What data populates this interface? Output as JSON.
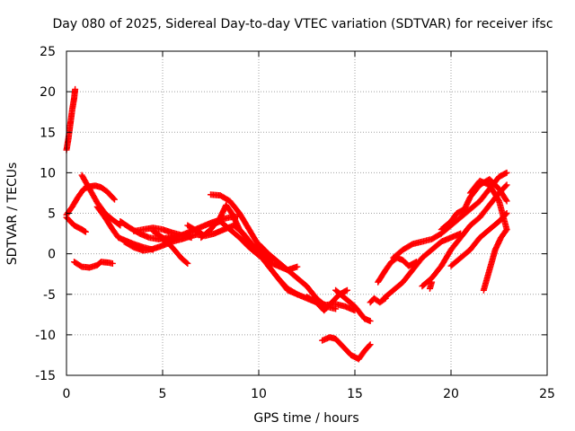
{
  "chart_data": {
    "type": "scatter",
    "title": "Day 080 of 2025, Sidereal Day-to-day VTEC variation (SDTVAR) for receiver ifsc",
    "xlabel": "GPS time / hours",
    "ylabel": "SDTVAR / TECUs",
    "xlim": [
      0,
      25
    ],
    "ylim": [
      -15,
      25
    ],
    "xticks": [
      0,
      5,
      10,
      15,
      20,
      25
    ],
    "yticks": [
      -15,
      -10,
      -5,
      0,
      5,
      10,
      15,
      20,
      25
    ],
    "grid": true,
    "marker": "plus",
    "color": "#ff0000",
    "series": [
      {
        "name": "s1",
        "points": [
          [
            0.0,
            12.8
          ],
          [
            0.1,
            14.2
          ],
          [
            0.2,
            16.0
          ],
          [
            0.3,
            17.8
          ],
          [
            0.4,
            19.2
          ],
          [
            0.45,
            20.3
          ]
        ]
      },
      {
        "name": "s2",
        "points": [
          [
            0.0,
            4.8
          ],
          [
            0.3,
            5.8
          ],
          [
            0.6,
            7.0
          ],
          [
            0.9,
            8.0
          ],
          [
            1.2,
            8.3
          ],
          [
            1.5,
            8.4
          ],
          [
            1.8,
            8.2
          ],
          [
            2.1,
            7.7
          ],
          [
            2.5,
            6.7
          ]
        ]
      },
      {
        "name": "s3",
        "points": [
          [
            0.0,
            4.5
          ],
          [
            0.4,
            3.5
          ],
          [
            0.8,
            3.0
          ],
          [
            1.0,
            2.7
          ]
        ]
      },
      {
        "name": "s4",
        "points": [
          [
            0.4,
            -1.0
          ],
          [
            0.8,
            -1.6
          ],
          [
            1.2,
            -1.7
          ],
          [
            1.6,
            -1.4
          ],
          [
            1.8,
            -1.0
          ],
          [
            2.2,
            -1.1
          ],
          [
            2.4,
            -1.2
          ]
        ]
      },
      {
        "name": "s5",
        "points": [
          [
            0.8,
            9.7
          ],
          [
            1.2,
            8.0
          ],
          [
            1.6,
            6.3
          ],
          [
            2.0,
            5.0
          ],
          [
            2.4,
            4.2
          ],
          [
            2.8,
            3.5
          ]
        ]
      },
      {
        "name": "s6",
        "points": [
          [
            1.6,
            5.8
          ],
          [
            2.0,
            4.5
          ],
          [
            2.4,
            3.0
          ],
          [
            2.7,
            2.0
          ],
          [
            3.0,
            1.7
          ],
          [
            3.5,
            1.2
          ],
          [
            4.0,
            0.8
          ],
          [
            4.5,
            0.5
          ]
        ]
      },
      {
        "name": "s7",
        "points": [
          [
            2.8,
            4.0
          ],
          [
            3.3,
            3.2
          ],
          [
            3.8,
            2.5
          ],
          [
            4.3,
            2.0
          ],
          [
            4.8,
            1.8
          ],
          [
            5.3,
            2.0
          ],
          [
            5.8,
            1.8
          ]
        ]
      },
      {
        "name": "s8",
        "points": [
          [
            3.5,
            2.8
          ],
          [
            4.0,
            3.0
          ],
          [
            4.5,
            3.2
          ],
          [
            5.0,
            3.0
          ],
          [
            5.5,
            2.6
          ],
          [
            6.0,
            2.3
          ],
          [
            6.5,
            2.0
          ]
        ]
      },
      {
        "name": "s9",
        "points": [
          [
            3.0,
            1.5
          ],
          [
            3.5,
            0.8
          ],
          [
            4.0,
            0.4
          ],
          [
            4.5,
            0.6
          ],
          [
            5.0,
            1.0
          ],
          [
            5.5,
            1.5
          ],
          [
            6.0,
            1.8
          ],
          [
            6.5,
            2.2
          ],
          [
            7.0,
            2.5
          ]
        ]
      },
      {
        "name": "s10",
        "points": [
          [
            4.5,
            2.8
          ],
          [
            5.0,
            2.0
          ],
          [
            5.5,
            0.8
          ],
          [
            6.0,
            -0.6
          ],
          [
            6.3,
            -1.2
          ]
        ]
      },
      {
        "name": "s11",
        "points": [
          [
            5.0,
            1.6
          ],
          [
            5.5,
            2.0
          ],
          [
            6.0,
            2.3
          ],
          [
            6.5,
            2.8
          ],
          [
            7.0,
            3.3
          ],
          [
            7.5,
            3.8
          ],
          [
            8.0,
            4.2
          ],
          [
            8.5,
            4.5
          ],
          [
            8.9,
            4.6
          ]
        ]
      },
      {
        "name": "s12",
        "points": [
          [
            6.3,
            3.5
          ],
          [
            6.8,
            2.8
          ],
          [
            7.2,
            2.2
          ],
          [
            7.7,
            2.5
          ],
          [
            8.2,
            3.0
          ],
          [
            8.7,
            3.5
          ],
          [
            9.2,
            2.5
          ],
          [
            9.7,
            1.0
          ],
          [
            10.2,
            0.0
          ],
          [
            10.7,
            -0.8
          ]
        ]
      },
      {
        "name": "s13",
        "points": [
          [
            7.5,
            7.3
          ],
          [
            8.0,
            7.2
          ],
          [
            8.5,
            6.5
          ],
          [
            9.0,
            5.0
          ],
          [
            9.5,
            3.0
          ],
          [
            10.0,
            1.0
          ],
          [
            10.5,
            -0.5
          ]
        ]
      },
      {
        "name": "s14",
        "points": [
          [
            7.0,
            2.0
          ],
          [
            7.5,
            3.0
          ],
          [
            8.0,
            4.5
          ],
          [
            8.3,
            6.0
          ],
          [
            8.6,
            5.0
          ],
          [
            9.0,
            3.0
          ],
          [
            9.5,
            1.5
          ],
          [
            10.0,
            0.0
          ],
          [
            10.5,
            -1.5
          ],
          [
            11.0,
            -3.0
          ],
          [
            11.5,
            -4.5
          ],
          [
            12.0,
            -5.0
          ]
        ]
      },
      {
        "name": "s15",
        "points": [
          [
            7.5,
            3.5
          ],
          [
            8.0,
            4.0
          ],
          [
            8.5,
            3.0
          ],
          [
            9.0,
            2.0
          ],
          [
            9.5,
            0.8
          ],
          [
            10.0,
            -0.2
          ],
          [
            10.5,
            -1.0
          ],
          [
            11.0,
            -1.5
          ],
          [
            11.5,
            -2.0
          ],
          [
            12.0,
            -1.6
          ]
        ]
      },
      {
        "name": "s16",
        "points": [
          [
            10.0,
            1.2
          ],
          [
            10.5,
            0.0
          ],
          [
            11.0,
            -1.0
          ],
          [
            11.5,
            -2.0
          ],
          [
            12.0,
            -3.0
          ],
          [
            12.5,
            -4.0
          ],
          [
            13.0,
            -5.5
          ],
          [
            13.5,
            -6.5
          ],
          [
            14.0,
            -6.8
          ]
        ]
      },
      {
        "name": "s17",
        "points": [
          [
            10.5,
            -1.5
          ],
          [
            11.0,
            -3.0
          ],
          [
            11.5,
            -4.3
          ],
          [
            12.0,
            -5.0
          ],
          [
            12.5,
            -5.5
          ],
          [
            13.0,
            -6.0
          ],
          [
            13.5,
            -6.3
          ],
          [
            14.0,
            -6.2
          ],
          [
            14.5,
            -6.5
          ],
          [
            15.0,
            -7.0
          ]
        ]
      },
      {
        "name": "s18",
        "points": [
          [
            12.5,
            -5.3
          ],
          [
            13.0,
            -6.0
          ],
          [
            13.4,
            -7.0
          ],
          [
            13.8,
            -6.0
          ],
          [
            14.2,
            -5.0
          ],
          [
            14.6,
            -4.5
          ]
        ]
      },
      {
        "name": "s19",
        "points": [
          [
            14.0,
            -4.5
          ],
          [
            14.5,
            -5.5
          ],
          [
            15.0,
            -6.5
          ],
          [
            15.5,
            -8.0
          ],
          [
            15.8,
            -8.3
          ]
        ]
      },
      {
        "name": "s20",
        "points": [
          [
            13.3,
            -10.7
          ],
          [
            13.7,
            -10.3
          ],
          [
            14.0,
            -10.5
          ],
          [
            14.4,
            -11.5
          ],
          [
            14.8,
            -12.5
          ],
          [
            15.2,
            -13.0
          ],
          [
            15.5,
            -12.0
          ],
          [
            15.8,
            -11.2
          ]
        ]
      },
      {
        "name": "s21",
        "points": [
          [
            15.8,
            -6.0
          ],
          [
            16.0,
            -5.5
          ],
          [
            16.3,
            -6.0
          ],
          [
            16.6,
            -5.5
          ]
        ]
      },
      {
        "name": "s22",
        "points": [
          [
            16.2,
            -3.5
          ],
          [
            16.6,
            -2.0
          ],
          [
            16.9,
            -1.0
          ],
          [
            17.2,
            -0.5
          ],
          [
            17.5,
            -0.8
          ],
          [
            17.8,
            -1.5
          ],
          [
            18.2,
            -1.0
          ]
        ]
      },
      {
        "name": "s23",
        "points": [
          [
            16.5,
            -5.5
          ],
          [
            17.0,
            -4.5
          ],
          [
            17.5,
            -3.5
          ],
          [
            18.0,
            -2.0
          ],
          [
            18.5,
            -0.5
          ],
          [
            19.0,
            0.5
          ],
          [
            19.5,
            1.5
          ],
          [
            20.0,
            2.0
          ],
          [
            20.5,
            2.5
          ]
        ]
      },
      {
        "name": "s24",
        "points": [
          [
            17.0,
            -0.5
          ],
          [
            17.5,
            0.5
          ],
          [
            18.0,
            1.2
          ],
          [
            18.5,
            1.5
          ],
          [
            19.0,
            1.8
          ],
          [
            19.5,
            2.5
          ],
          [
            20.0,
            3.5
          ],
          [
            20.5,
            4.5
          ],
          [
            21.0,
            5.5
          ],
          [
            21.5,
            6.5
          ],
          [
            22.0,
            8.0
          ],
          [
            22.5,
            9.5
          ],
          [
            22.9,
            10.0
          ]
        ]
      },
      {
        "name": "s25",
        "points": [
          [
            18.5,
            -4.0
          ],
          [
            19.0,
            -3.0
          ],
          [
            19.5,
            -1.5
          ],
          [
            20.0,
            0.5
          ],
          [
            20.5,
            2.0
          ],
          [
            21.0,
            3.5
          ],
          [
            21.5,
            4.5
          ],
          [
            22.0,
            6.0
          ],
          [
            22.5,
            7.5
          ],
          [
            22.9,
            8.5
          ]
        ]
      },
      {
        "name": "s26",
        "points": [
          [
            19.5,
            3.0
          ],
          [
            20.0,
            4.0
          ],
          [
            20.3,
            5.0
          ],
          [
            20.7,
            5.5
          ],
          [
            21.0,
            7.0
          ],
          [
            21.5,
            8.5
          ],
          [
            22.0,
            9.2
          ],
          [
            22.5,
            8.0
          ],
          [
            22.9,
            6.5
          ]
        ]
      },
      {
        "name": "s27",
        "points": [
          [
            20.0,
            -1.5
          ],
          [
            20.5,
            -0.5
          ],
          [
            21.0,
            0.5
          ],
          [
            21.5,
            2.0
          ],
          [
            22.0,
            3.0
          ],
          [
            22.5,
            4.0
          ],
          [
            22.9,
            5.0
          ]
        ]
      },
      {
        "name": "s28",
        "points": [
          [
            21.0,
            7.5
          ],
          [
            21.5,
            9.0
          ],
          [
            22.0,
            8.5
          ],
          [
            22.5,
            6.5
          ],
          [
            22.9,
            3.0
          ]
        ]
      },
      {
        "name": "s29",
        "points": [
          [
            21.7,
            -4.5
          ],
          [
            22.0,
            -2.0
          ],
          [
            22.3,
            0.5
          ],
          [
            22.6,
            2.0
          ],
          [
            22.9,
            3.0
          ]
        ]
      },
      {
        "name": "s30",
        "points": [
          [
            18.9,
            -4.3
          ],
          [
            19.0,
            -3.5
          ]
        ]
      }
    ]
  }
}
